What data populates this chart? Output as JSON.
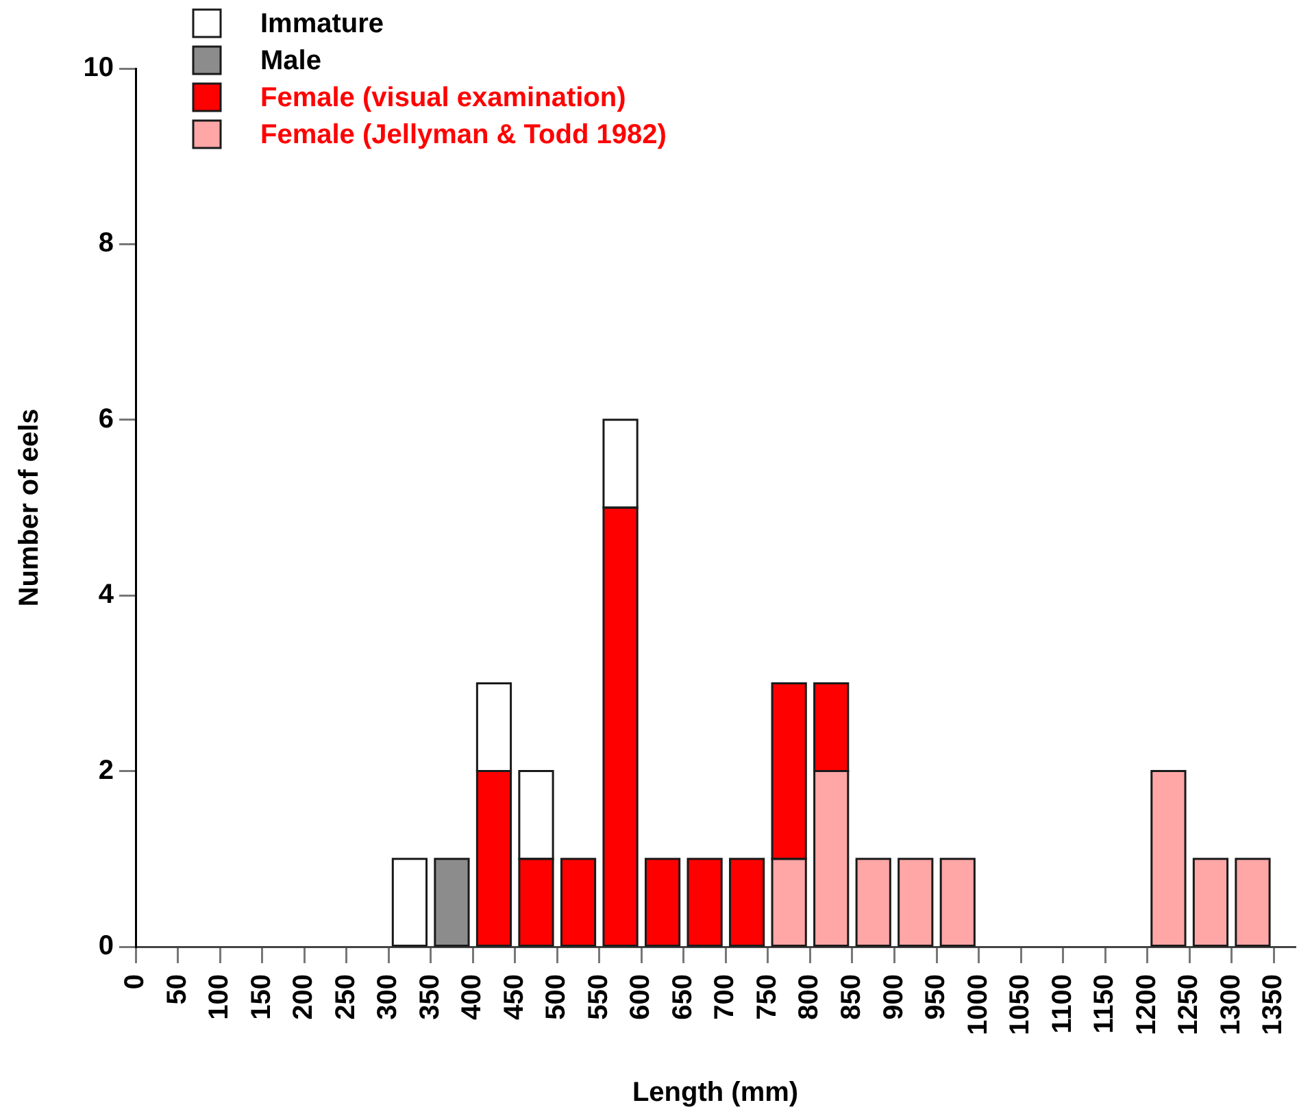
{
  "chart_data": {
    "type": "bar",
    "xlabel": "Length (mm)",
    "ylabel": "Number of eels",
    "x": [
      25,
      75,
      125,
      175,
      225,
      275,
      325,
      375,
      425,
      475,
      525,
      575,
      625,
      675,
      725,
      775,
      825,
      875,
      925,
      975,
      1025,
      1075,
      1125,
      1175,
      1225,
      1275,
      1325
    ],
    "series": [
      {
        "name": "Female (Jellyman & Todd 1982)",
        "color": "#ffa6a6",
        "values": [
          0,
          0,
          0,
          0,
          0,
          0,
          0,
          0,
          0,
          0,
          0,
          0,
          0,
          0,
          0,
          1,
          2,
          1,
          1,
          1,
          0,
          0,
          0,
          0,
          2,
          1,
          1
        ]
      },
      {
        "name": "Female (visual examination)",
        "color": "#ff0000",
        "values": [
          0,
          0,
          0,
          0,
          0,
          0,
          0,
          0,
          2,
          1,
          1,
          5,
          1,
          1,
          1,
          2,
          1,
          0,
          0,
          0,
          0,
          0,
          0,
          0,
          0,
          0,
          0
        ]
      },
      {
        "name": "Male",
        "color": "#8c8c8c",
        "values": [
          0,
          0,
          0,
          0,
          0,
          0,
          0,
          1,
          0,
          0,
          0,
          0,
          0,
          0,
          0,
          0,
          0,
          0,
          0,
          0,
          0,
          0,
          0,
          0,
          0,
          0,
          0
        ]
      },
      {
        "name": "Immature",
        "color": "#ffffff",
        "values": [
          0,
          0,
          0,
          0,
          0,
          0,
          1,
          0,
          1,
          1,
          0,
          1,
          0,
          0,
          0,
          0,
          0,
          0,
          0,
          0,
          0,
          0,
          0,
          0,
          0,
          0,
          0
        ]
      }
    ],
    "stacked": true,
    "xlim": [
      0,
      1375
    ],
    "xticks": [
      0,
      50,
      100,
      150,
      200,
      250,
      300,
      350,
      400,
      450,
      500,
      550,
      600,
      650,
      700,
      750,
      800,
      850,
      900,
      950,
      1000,
      1050,
      1100,
      1150,
      1200,
      1250,
      1300,
      1350
    ],
    "ylim": [
      0,
      10
    ],
    "yticks": [
      0,
      2,
      4,
      6,
      8,
      10
    ],
    "legend": "top left"
  }
}
